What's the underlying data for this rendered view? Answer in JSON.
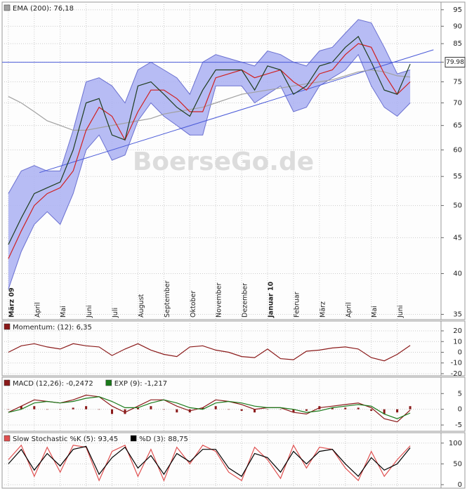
{
  "chart_data": [
    {
      "type": "line",
      "ylog": true,
      "ylim": [
        34.4,
        97.4
      ],
      "yticks": [
        35,
        40,
        45,
        50,
        55,
        60,
        65,
        70,
        75,
        80,
        85,
        90,
        95
      ],
      "xlim": [
        -0.24,
        16.69
      ],
      "xticks": [
        {
          "value": 0,
          "label": "März 09"
        },
        {
          "value": 1,
          "label": "April"
        },
        {
          "value": 2,
          "label": "Mai"
        },
        {
          "value": 3,
          "label": "Juni"
        },
        {
          "value": 4,
          "label": "Juli"
        },
        {
          "value": 5,
          "label": "August"
        },
        {
          "value": 6,
          "label": "September"
        },
        {
          "value": 7,
          "label": "Oktober"
        },
        {
          "value": 8,
          "label": "November"
        },
        {
          "value": 9,
          "label": "Dezember"
        },
        {
          "value": 10,
          "label": "Januar 10"
        },
        {
          "value": 11,
          "label": "Februar"
        },
        {
          "value": 12,
          "label": "März"
        },
        {
          "value": 13,
          "label": "April"
        },
        {
          "value": 14,
          "label": "Mai"
        },
        {
          "value": 15,
          "label": "Juni"
        }
      ],
      "grid": true,
      "watermark": "BoerseGo.de",
      "last_price": 79.98,
      "x": [
        0,
        0.5,
        1,
        1.5,
        2,
        2.5,
        3,
        3.5,
        4,
        4.5,
        5,
        5.5,
        6,
        6.5,
        7,
        7.5,
        8,
        8.5,
        9,
        9.5,
        10,
        10.5,
        11,
        11.5,
        12,
        12.5,
        13,
        13.5,
        14,
        14.5,
        15,
        15.5
      ],
      "band": {
        "color": "#aab0f2",
        "upper": [
          52,
          56,
          57,
          56,
          56,
          64,
          75,
          76,
          74,
          70,
          78,
          80,
          78,
          76,
          72,
          80,
          82,
          81,
          80,
          79,
          83,
          82,
          80,
          79,
          83,
          84,
          88,
          92,
          91,
          84,
          77,
          78
        ],
        "lower": [
          38,
          43,
          47,
          49,
          47,
          52,
          60,
          63,
          58,
          59,
          66,
          70,
          67,
          65,
          63,
          63,
          74,
          74,
          74,
          70,
          72,
          74,
          68,
          69,
          74,
          76,
          78,
          82,
          74,
          69,
          67,
          70
        ]
      },
      "trendlines": [
        {
          "color": "#4a5ad8",
          "x": [
            1.2,
            16.4
          ],
          "values": [
            55.7,
            83.3
          ]
        }
      ],
      "series": [
        {
          "name": "EMA (200): 76,18",
          "color": "#a0a0a0",
          "values": [
            71.5,
            70,
            68,
            66,
            65,
            64,
            64,
            64.5,
            65,
            65.5,
            66,
            66.5,
            67.5,
            68,
            68.5,
            69,
            70,
            71,
            72,
            72.5,
            73,
            73.5,
            74,
            74.5,
            75,
            75.5,
            76.5,
            77.5,
            78,
            77.5,
            76.5,
            76.2
          ]
        },
        {
          "color": "#d02020",
          "values": [
            42,
            46,
            50,
            52,
            53,
            56,
            64,
            69,
            67,
            62,
            68,
            73,
            73,
            71,
            68,
            68,
            76,
            77,
            78,
            76,
            77,
            78,
            75,
            73,
            77,
            78,
            82,
            85,
            84,
            77,
            72,
            75
          ]
        },
        {
          "color": "#1f3d1f",
          "values": [
            44,
            48,
            52,
            53,
            54,
            60,
            70,
            71,
            63,
            62,
            74,
            75,
            72,
            69,
            67,
            73,
            78,
            78,
            78,
            73,
            79,
            78,
            72,
            74,
            79,
            80,
            84,
            87,
            80,
            73,
            72,
            79.5
          ]
        }
      ]
    },
    {
      "type": "line",
      "ylim": [
        -22,
        29.2
      ],
      "yticks": [
        -20,
        -10,
        0,
        10,
        20
      ],
      "grid": true,
      "x": [
        0,
        0.5,
        1,
        1.5,
        2,
        2.5,
        3,
        3.5,
        4,
        4.5,
        5,
        5.5,
        6,
        6.5,
        7,
        7.5,
        8,
        8.5,
        9,
        9.5,
        10,
        10.5,
        11,
        11.5,
        12,
        12.5,
        13,
        13.5,
        14,
        14.5,
        15,
        15.5
      ],
      "series": [
        {
          "name": "Momentum: (12): 6,35",
          "color": "#8b1a1a",
          "values": [
            0,
            6,
            8,
            5,
            3,
            8,
            6,
            5,
            -3,
            3,
            8,
            2,
            -2,
            -4,
            5,
            6,
            2,
            0,
            -4,
            -5,
            3,
            -6,
            -7,
            1,
            2,
            4,
            5,
            3,
            -5,
            -8,
            -2,
            6.35
          ]
        }
      ]
    },
    {
      "type": "line",
      "ylim": [
        -7,
        10.2
      ],
      "yticks": [
        -5,
        0,
        5
      ],
      "grid": true,
      "x": [
        0,
        0.5,
        1,
        1.5,
        2,
        2.5,
        3,
        3.5,
        4,
        4.5,
        5,
        5.5,
        6,
        6.5,
        7,
        7.5,
        8,
        8.5,
        9,
        9.5,
        10,
        10.5,
        11,
        11.5,
        12,
        12.5,
        13,
        13.5,
        14,
        14.5,
        15,
        15.5
      ],
      "histogram": {
        "color": "#8b1a1a",
        "values": [
          0,
          1,
          1,
          0,
          0,
          0.5,
          1,
          0,
          -1.5,
          -1.5,
          0.5,
          1,
          0,
          -1,
          -1,
          0.5,
          1,
          0,
          -0.5,
          -1,
          0,
          0,
          -1,
          -0.5,
          1,
          0.5,
          0.5,
          0.5,
          -0.5,
          -1.5,
          -1,
          1
        ]
      },
      "series": [
        {
          "name": "MACD (12,26): -0,2472",
          "color": "#8b1a1a",
          "values": [
            -1,
            1,
            3,
            2.5,
            2,
            3,
            4.5,
            4,
            1,
            -1,
            1,
            3,
            3,
            1,
            -0.5,
            0.5,
            3,
            2.5,
            1.5,
            0,
            0.5,
            0.5,
            -1,
            -1.5,
            0.5,
            1,
            1.5,
            2,
            0.5,
            -3,
            -4,
            -0.25
          ]
        },
        {
          "name": "EXP (9): -1,217",
          "color": "#1a7a1a",
          "values": [
            -1,
            0,
            2,
            2.5,
            2,
            2.5,
            3.5,
            4,
            2.5,
            0.5,
            0.5,
            2,
            3,
            2,
            0.5,
            0,
            2,
            2.5,
            2,
            1,
            0.5,
            0.5,
            0,
            -1,
            -0.5,
            0.5,
            1,
            1.5,
            1,
            -1.5,
            -3,
            -1.2
          ]
        }
      ]
    },
    {
      "type": "line",
      "ylim": [
        -8.5,
        125
      ],
      "yticks": [
        0,
        50,
        100
      ],
      "grid": true,
      "x": [
        0,
        0.5,
        1,
        1.5,
        2,
        2.5,
        3,
        3.5,
        4,
        4.5,
        5,
        5.5,
        6,
        6.5,
        7,
        7.5,
        8,
        8.5,
        9,
        9.5,
        10,
        10.5,
        11,
        11.5,
        12,
        12.5,
        13,
        13.5,
        14,
        14.5,
        15,
        15.5
      ],
      "series": [
        {
          "name": "Slow Stochastic %K (5): 93,45",
          "color": "#e05050",
          "values": [
            60,
            95,
            20,
            90,
            30,
            95,
            90,
            10,
            80,
            95,
            20,
            85,
            10,
            90,
            50,
            95,
            80,
            30,
            10,
            90,
            60,
            15,
            95,
            40,
            90,
            85,
            40,
            10,
            80,
            20,
            60,
            93.45
          ]
        },
        {
          "name": "%D (3): 88,75",
          "color": "#000000",
          "values": [
            50,
            85,
            35,
            75,
            45,
            85,
            92,
            25,
            65,
            90,
            40,
            70,
            25,
            75,
            55,
            85,
            85,
            40,
            20,
            75,
            65,
            30,
            80,
            50,
            80,
            85,
            50,
            20,
            65,
            35,
            50,
            88.75
          ]
        }
      ]
    }
  ]
}
